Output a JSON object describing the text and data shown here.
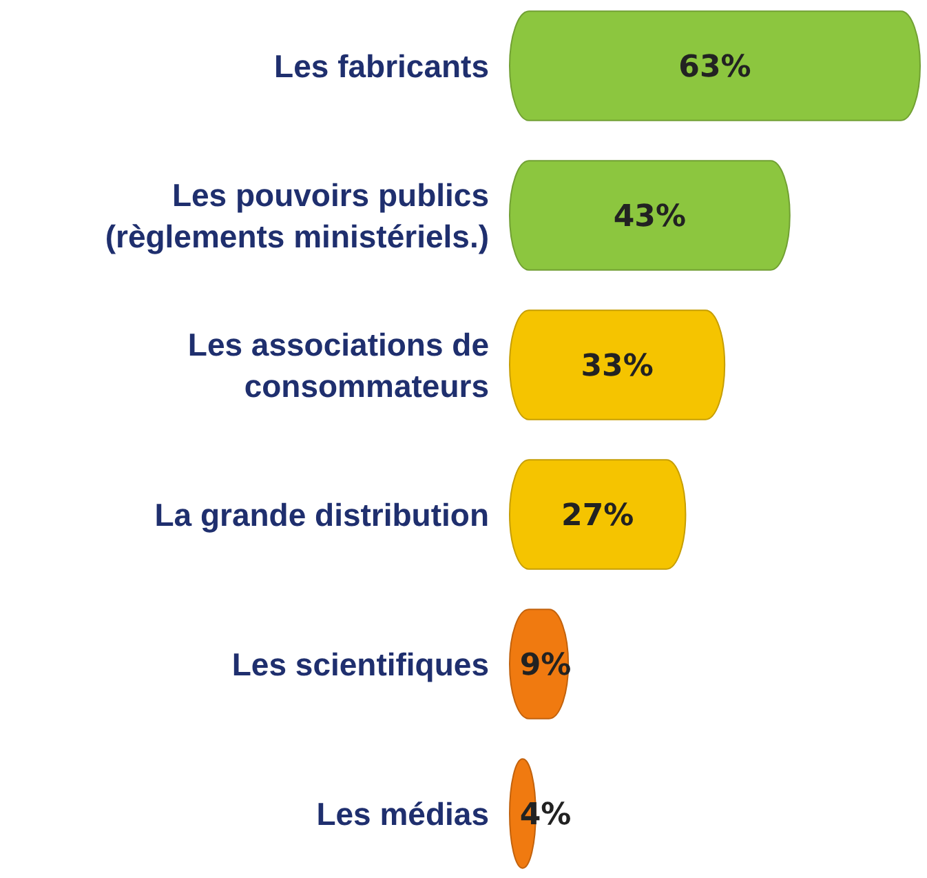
{
  "chart_data": {
    "type": "bar",
    "orientation": "horizontal",
    "categories": [
      "Les fabricants",
      "Les pouvoirs publics (règlements ministériels.)",
      "Les associations de consommateurs",
      "La grande distribution",
      "Les scientifiques",
      "Les médias"
    ],
    "values": [
      63,
      43,
      33,
      27,
      9,
      4
    ],
    "colors": [
      "#8cc63f",
      "#8cc63f",
      "#f5c400",
      "#f5c400",
      "#f07a10",
      "#f07a10"
    ],
    "value_labels": [
      "63%",
      "43%",
      "33%",
      "27%",
      "9%",
      "4%"
    ]
  }
}
